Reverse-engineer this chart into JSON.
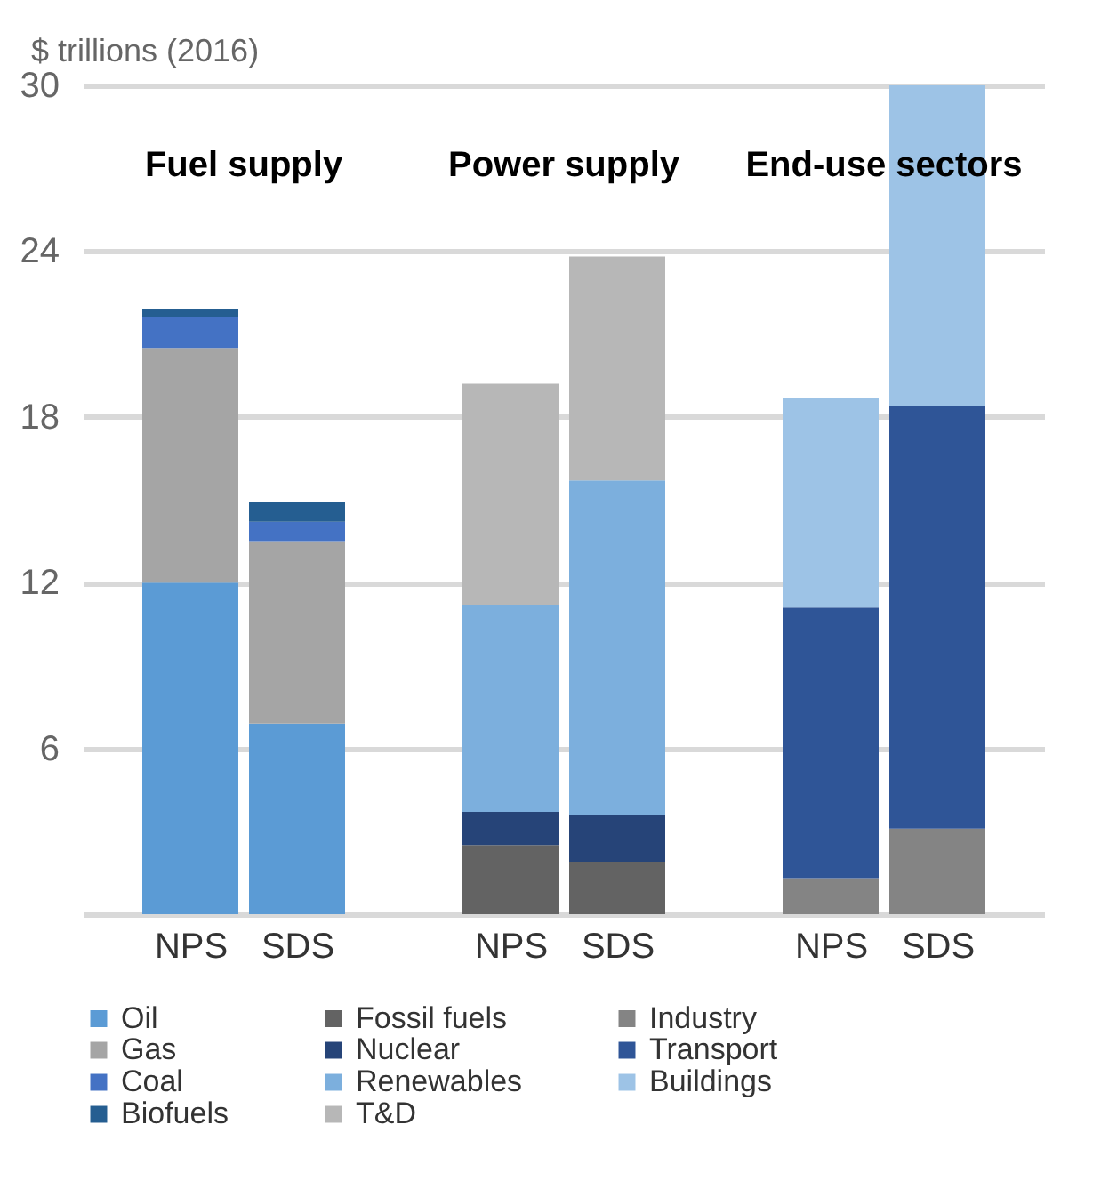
{
  "chart_data": {
    "type": "bar",
    "stacked": true,
    "ylabel": "$ trillions (2016)",
    "annotations": [
      "Fuel  supply",
      "Power supply",
      "End-use sectors"
    ],
    "categories": [
      "NPS",
      "SDS",
      "NPS",
      "SDS",
      "NPS",
      "SDS"
    ],
    "series": [
      {
        "name": "Oil",
        "color": "#5b9bd5",
        "values": [
          12,
          6.9,
          null,
          null,
          null,
          null
        ]
      },
      {
        "name": "Gas",
        "color": "#a5a5a5",
        "values": [
          8.5,
          6.6,
          null,
          null,
          null,
          null
        ]
      },
      {
        "name": "Coal",
        "color": "#4472c4",
        "values": [
          1.1,
          0.7,
          null,
          null,
          null,
          null
        ]
      },
      {
        "name": "Biofuels",
        "color": "#255e91",
        "values": [
          0.3,
          0.7,
          null,
          null,
          null,
          null
        ]
      },
      {
        "name": "Fossil fuels",
        "color": "#636363",
        "values": [
          null,
          null,
          2.5,
          1.9,
          null,
          null
        ]
      },
      {
        "name": "Nuclear",
        "color": "#264478",
        "values": [
          null,
          null,
          1.2,
          1.7,
          null,
          null
        ]
      },
      {
        "name": "Renewables",
        "color": "#7cafdd",
        "values": [
          null,
          null,
          7.5,
          12.1,
          null,
          null
        ]
      },
      {
        "name": "T&D",
        "color": "#b7b7b7",
        "values": [
          null,
          null,
          8,
          8.1,
          null,
          null
        ]
      },
      {
        "name": "Industry",
        "color": "#848484",
        "values": [
          null,
          null,
          null,
          null,
          1.3,
          3.1
        ]
      },
      {
        "name": "Transport",
        "color": "#2f5597",
        "values": [
          null,
          null,
          null,
          null,
          9.8,
          15.3
        ]
      },
      {
        "name": "Buildings",
        "color": "#9dc3e6",
        "values": [
          null,
          null,
          null,
          null,
          7.6,
          11.6
        ]
      }
    ],
    "ylim": [
      0,
      30
    ],
    "yticks": [
      {
        "value": 0,
        "label": null
      },
      6,
      12,
      18,
      24,
      30
    ],
    "grid": "y",
    "legend": "bottom"
  }
}
